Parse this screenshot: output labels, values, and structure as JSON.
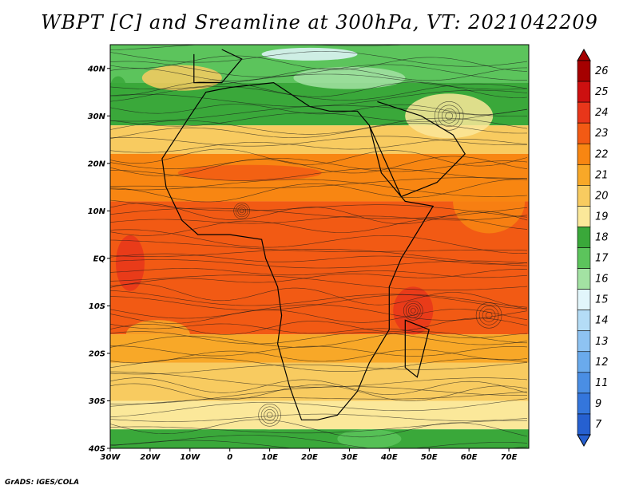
{
  "title": "WBPT [C] and Sreamline at 300hPa, VT: 2021042209",
  "credit": "GrADS: IGES/COLA",
  "map": {
    "lon_range": [
      -30,
      75
    ],
    "lat_range": [
      -40,
      45
    ],
    "lat_ticks": [
      {
        "value": 40,
        "label": "40N"
      },
      {
        "value": 30,
        "label": "30N"
      },
      {
        "value": 20,
        "label": "20N"
      },
      {
        "value": 10,
        "label": "10N"
      },
      {
        "value": 0,
        "label": "EQ"
      },
      {
        "value": -10,
        "label": "10S"
      },
      {
        "value": -20,
        "label": "20S"
      },
      {
        "value": -30,
        "label": "30S"
      },
      {
        "value": -40,
        "label": "40S"
      }
    ],
    "lon_ticks": [
      {
        "value": -30,
        "label": "30W"
      },
      {
        "value": -20,
        "label": "20W"
      },
      {
        "value": -10,
        "label": "10W"
      },
      {
        "value": 0,
        "label": "0"
      },
      {
        "value": 10,
        "label": "10E"
      },
      {
        "value": 20,
        "label": "20E"
      },
      {
        "value": 30,
        "label": "30E"
      },
      {
        "value": 40,
        "label": "40E"
      },
      {
        "value": 50,
        "label": "50E"
      },
      {
        "value": 60,
        "label": "60E"
      },
      {
        "value": 70,
        "label": "70E"
      }
    ],
    "field_bands": [
      {
        "lat_from": 45,
        "lat_to": 37,
        "level": 17
      },
      {
        "lat_from": 37,
        "lat_to": 28,
        "level": 18
      },
      {
        "lat_from": 28,
        "lat_to": 22,
        "level": 20
      },
      {
        "lat_from": 22,
        "lat_to": 12,
        "level": 22
      },
      {
        "lat_from": 12,
        "lat_to": -16,
        "level": 23
      },
      {
        "lat_from": -16,
        "lat_to": -22,
        "level": 21
      },
      {
        "lat_from": -22,
        "lat_to": -30,
        "level": 20
      },
      {
        "lat_from": -30,
        "lat_to": -36,
        "level": 19
      },
      {
        "lat_from": -36,
        "lat_to": -40,
        "level": 18
      }
    ]
  },
  "colorbar": {
    "levels": [
      {
        "label": "26",
        "color": "#a50000"
      },
      {
        "label": "25",
        "color": "#cd1010"
      },
      {
        "label": "24",
        "color": "#e8361a"
      },
      {
        "label": "23",
        "color": "#f25a14"
      },
      {
        "label": "22",
        "color": "#f88612"
      },
      {
        "label": "21",
        "color": "#f8a828"
      },
      {
        "label": "20",
        "color": "#f8cb60"
      },
      {
        "label": "19",
        "color": "#fbe89a"
      },
      {
        "label": "18",
        "color": "#3aa83a"
      },
      {
        "label": "17",
        "color": "#5cc45c"
      },
      {
        "label": "16",
        "color": "#a3e2a3"
      },
      {
        "label": "15",
        "color": "#e2f6fb"
      },
      {
        "label": "14",
        "color": "#b4dcf6"
      },
      {
        "label": "13",
        "color": "#8ec3f2"
      },
      {
        "label": "12",
        "color": "#6aaaec"
      },
      {
        "label": "11",
        "color": "#4a8ee4"
      },
      {
        "label": "9",
        "color": "#3476dc"
      },
      {
        "label": "7",
        "color": "#2660d0"
      }
    ]
  }
}
